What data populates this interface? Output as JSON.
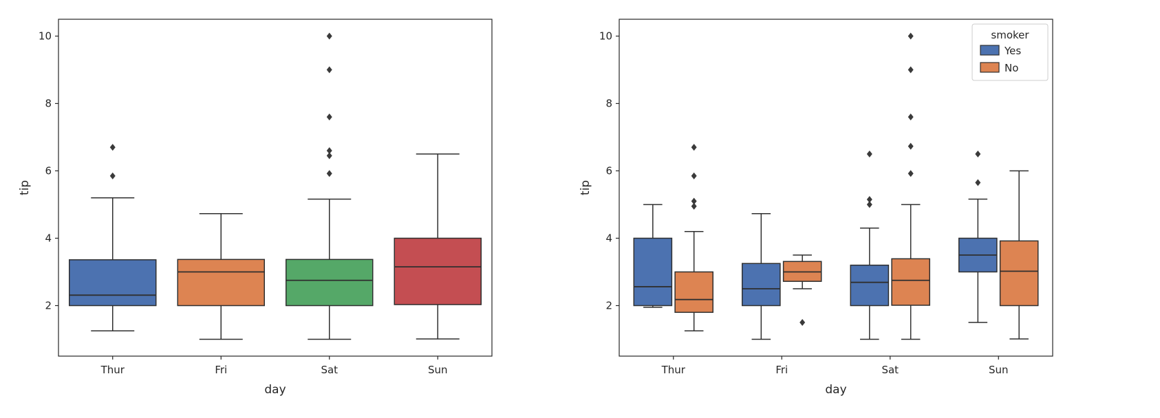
{
  "figure": {
    "background": "#ffffff",
    "text_color": "#262626",
    "spine_color": "#262626"
  },
  "chart_data": [
    {
      "type": "boxplot",
      "title": "",
      "xlabel": "day",
      "ylabel": "tip",
      "categories": [
        "Thur",
        "Fri",
        "Sat",
        "Sun"
      ],
      "ylim": [
        0.5,
        10.5
      ],
      "yticks": [
        2,
        4,
        6,
        8,
        10
      ],
      "grid": false,
      "edge_color": "#2f2f2f",
      "outlier_color": "#3a3a3a",
      "series": [
        {
          "name": "day",
          "boxes": [
            {
              "category": "Thur",
              "color": "#4C72B0",
              "whislo": 1.25,
              "q1": 2.0,
              "med": 2.31,
              "q3": 3.36,
              "whishi": 5.2,
              "outliers": [
                5.85,
                6.7
              ]
            },
            {
              "category": "Fri",
              "color": "#DD8452",
              "whislo": 1.0,
              "q1": 2.0,
              "med": 3.0,
              "q3": 3.37,
              "whishi": 4.73,
              "outliers": []
            },
            {
              "category": "Sat",
              "color": "#55A868",
              "whislo": 1.0,
              "q1": 2.0,
              "med": 2.75,
              "q3": 3.37,
              "whishi": 5.16,
              "outliers": [
                5.92,
                6.45,
                6.6,
                7.6,
                9.0,
                10.0
              ]
            },
            {
              "category": "Sun",
              "color": "#C44E52",
              "whislo": 1.01,
              "q1": 2.03,
              "med": 3.15,
              "q3": 4.0,
              "whishi": 6.5,
              "outliers": []
            }
          ]
        }
      ]
    },
    {
      "type": "boxplot",
      "title": "",
      "xlabel": "day",
      "ylabel": "tip",
      "categories": [
        "Thur",
        "Fri",
        "Sat",
        "Sun"
      ],
      "ylim": [
        0.5,
        10.5
      ],
      "yticks": [
        2,
        4,
        6,
        8,
        10
      ],
      "grid": false,
      "edge_color": "#2f2f2f",
      "outlier_color": "#3a3a3a",
      "legend": {
        "title": "smoker",
        "position": "upper-right",
        "entries": [
          {
            "label": "Yes",
            "color": "#4C72B0"
          },
          {
            "label": "No",
            "color": "#DD8452"
          }
        ]
      },
      "series": [
        {
          "name": "Yes",
          "color": "#4C72B0",
          "boxes": [
            {
              "category": "Thur",
              "whislo": 1.95,
              "q1": 2.0,
              "med": 2.56,
              "q3": 4.0,
              "whishi": 5.0,
              "outliers": []
            },
            {
              "category": "Fri",
              "whislo": 1.0,
              "q1": 2.0,
              "med": 2.5,
              "q3": 3.25,
              "whishi": 4.73,
              "outliers": []
            },
            {
              "category": "Sat",
              "whislo": 1.0,
              "q1": 2.0,
              "med": 2.69,
              "q3": 3.2,
              "whishi": 4.3,
              "outliers": [
                5.0,
                5.15,
                6.5
              ]
            },
            {
              "category": "Sun",
              "whislo": 1.5,
              "q1": 3.0,
              "med": 3.5,
              "q3": 4.0,
              "whishi": 5.16,
              "outliers": [
                5.65,
                6.5
              ]
            }
          ]
        },
        {
          "name": "No",
          "color": "#DD8452",
          "boxes": [
            {
              "category": "Thur",
              "whislo": 1.25,
              "q1": 1.8,
              "med": 2.18,
              "q3": 3.0,
              "whishi": 4.2,
              "outliers": [
                4.95,
                5.1,
                5.85,
                6.7
              ]
            },
            {
              "category": "Fri",
              "whislo": 2.5,
              "q1": 2.72,
              "med": 3.0,
              "q3": 3.31,
              "whishi": 3.5,
              "outliers": [
                1.5
              ]
            },
            {
              "category": "Sat",
              "whislo": 1.0,
              "q1": 2.01,
              "med": 2.75,
              "q3": 3.39,
              "whishi": 5.0,
              "outliers": [
                5.92,
                6.73,
                7.6,
                9.0,
                10.0
              ]
            },
            {
              "category": "Sun",
              "whislo": 1.01,
              "q1": 2.0,
              "med": 3.02,
              "q3": 3.92,
              "whishi": 6.0,
              "outliers": []
            }
          ]
        }
      ]
    }
  ]
}
